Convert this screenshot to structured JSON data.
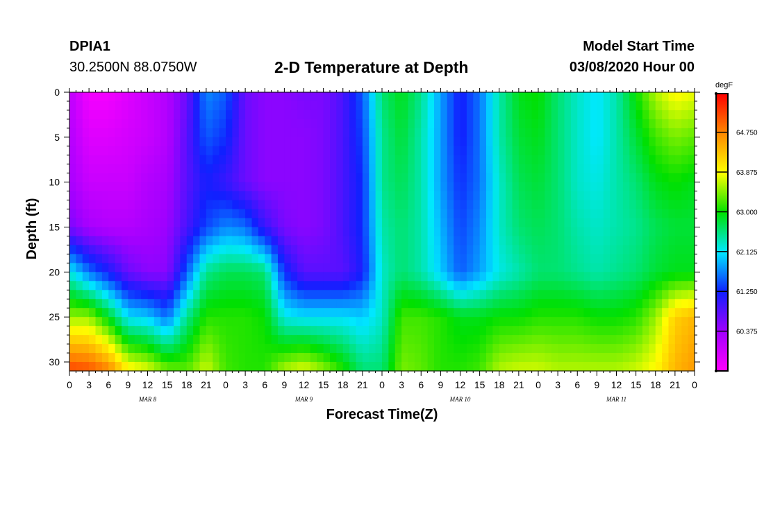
{
  "header": {
    "station": "DPIA1",
    "coords": "30.2500N 88.0750W",
    "title": "2-D Temperature at Depth",
    "model_start_label": "Model Start Time",
    "model_start_value": "03/08/2020 Hour 00"
  },
  "chart_data": {
    "type": "heatmap",
    "title": "2-D Temperature at Depth",
    "xlabel": "Forecast Time(Z)",
    "ylabel": "Depth (ft)",
    "x_hours_range": [
      0,
      96
    ],
    "x_step_hours": 3,
    "x_tick_labels": [
      "0",
      "3",
      "6",
      "9",
      "12",
      "15",
      "18",
      "21",
      "0",
      "3",
      "6",
      "9",
      "12",
      "15",
      "18",
      "21",
      "0",
      "3",
      "6",
      "9",
      "12",
      "15",
      "18",
      "21",
      "0",
      "3",
      "6",
      "9",
      "12",
      "15",
      "18",
      "21",
      "0"
    ],
    "day_labels": [
      {
        "text": "MAR 8",
        "hour": 12
      },
      {
        "text": "MAR 9",
        "hour": 36
      },
      {
        "text": "MAR 10",
        "hour": 60
      },
      {
        "text": "MAR 11",
        "hour": 84
      }
    ],
    "ylim": [
      0,
      31
    ],
    "y_ticks": [
      0,
      5,
      10,
      15,
      20,
      25,
      30
    ],
    "colorbar": {
      "unit": "degF",
      "range": [
        59.5,
        65.6
      ],
      "ticks": [
        64.75,
        63.875,
        63.0,
        62.125,
        61.25,
        60.375
      ],
      "tick_labels": [
        "64.750",
        "63.875",
        "63.000",
        "62.125",
        "61.250",
        "60.375"
      ],
      "colors": [
        "#ff00ff",
        "#a000ff",
        "#1020ff",
        "#00e8ff",
        "#00e000",
        "#ffff00",
        "#ff8800",
        "#ff0000"
      ]
    },
    "depths_ft": [
      0,
      5,
      10,
      15,
      20,
      25,
      31
    ],
    "times_hours": [
      0,
      3,
      6,
      9,
      12,
      15,
      18,
      21,
      24,
      27,
      30,
      33,
      36,
      39,
      42,
      45,
      48,
      51,
      54,
      57,
      60,
      63,
      66,
      69,
      72,
      75,
      78,
      81,
      84,
      87,
      90,
      93,
      96
    ],
    "temperature_degF": [
      [
        60.1,
        59.6,
        59.6,
        59.8,
        60.0,
        60.2,
        60.7,
        61.7,
        61.5,
        60.7,
        60.5,
        60.5,
        60.6,
        60.6,
        60.9,
        61.5,
        62.6,
        62.9,
        62.5,
        61.8,
        61.2,
        61.6,
        62.4,
        62.9,
        63.0,
        62.6,
        62.3,
        62.1,
        62.4,
        63.0,
        63.6,
        63.9,
        63.8
      ],
      [
        60.2,
        59.8,
        59.8,
        59.9,
        60.0,
        60.2,
        60.8,
        61.5,
        61.3,
        60.7,
        60.5,
        60.5,
        60.5,
        60.6,
        60.9,
        61.4,
        62.5,
        62.8,
        62.4,
        61.8,
        61.2,
        61.6,
        62.4,
        62.8,
        62.9,
        62.6,
        62.3,
        62.1,
        62.4,
        62.8,
        63.2,
        63.4,
        63.3
      ],
      [
        60.3,
        60.0,
        60.0,
        60.0,
        60.2,
        60.3,
        60.8,
        61.2,
        61.0,
        60.7,
        60.5,
        60.5,
        60.5,
        60.6,
        60.9,
        61.3,
        62.5,
        62.7,
        62.4,
        61.8,
        61.3,
        61.6,
        62.3,
        62.7,
        62.8,
        62.6,
        62.3,
        62.2,
        62.4,
        62.6,
        62.9,
        63.0,
        62.9
      ],
      [
        60.6,
        60.3,
        60.2,
        60.2,
        60.3,
        60.4,
        60.9,
        61.4,
        61.7,
        61.6,
        61.0,
        60.6,
        60.5,
        60.6,
        60.9,
        61.3,
        62.4,
        62.6,
        62.4,
        61.9,
        61.4,
        61.7,
        62.3,
        62.6,
        62.7,
        62.6,
        62.4,
        62.3,
        62.4,
        62.5,
        62.7,
        62.8,
        62.8
      ],
      [
        62.2,
        61.6,
        61.2,
        60.7,
        60.5,
        60.5,
        61.5,
        62.5,
        62.7,
        62.7,
        62.6,
        61.3,
        60.8,
        60.8,
        60.8,
        61.2,
        62.3,
        62.6,
        62.4,
        62.0,
        61.5,
        61.8,
        62.2,
        62.4,
        62.6,
        62.6,
        62.5,
        62.4,
        62.5,
        62.6,
        62.8,
        62.9,
        62.9
      ],
      [
        63.5,
        63.5,
        62.9,
        62.1,
        62.0,
        61.6,
        62.5,
        63.1,
        63.1,
        63.1,
        63.0,
        62.2,
        62.1,
        62.1,
        62.1,
        62.0,
        62.3,
        63.2,
        63.2,
        63.1,
        62.9,
        62.9,
        63.0,
        63.0,
        63.1,
        63.1,
        63.1,
        63.0,
        63.0,
        63.1,
        63.5,
        64.2,
        64.4
      ],
      [
        65.2,
        65.1,
        64.8,
        64.0,
        63.8,
        63.4,
        63.3,
        63.7,
        63.2,
        63.1,
        63.1,
        63.6,
        63.8,
        63.5,
        63.1,
        62.6,
        62.6,
        63.4,
        63.3,
        63.1,
        63.1,
        63.2,
        63.6,
        63.7,
        63.7,
        63.6,
        63.6,
        63.6,
        63.6,
        63.7,
        63.9,
        64.4,
        64.6
      ]
    ]
  }
}
